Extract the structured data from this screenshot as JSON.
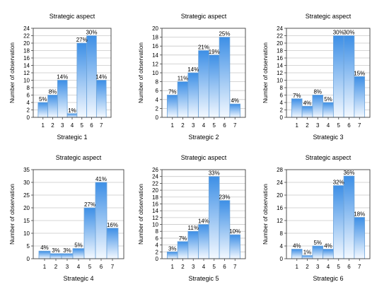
{
  "chart_data": [
    {
      "type": "bar",
      "title": "Strategic aspect",
      "xlabel": "Strategic 1",
      "ylabel": "Number of observation",
      "categories": [
        "1",
        "2",
        "3",
        "4",
        "5",
        "6",
        "7"
      ],
      "values": [
        4,
        6,
        10,
        1,
        20,
        22,
        10
      ],
      "data_labels": [
        "5%",
        "8%",
        "14%",
        "1%",
        "27%",
        "30%",
        "14%"
      ],
      "yticks": [
        "0",
        "2",
        "4",
        "6",
        "8",
        "10",
        "12",
        "14",
        "16",
        "18",
        "20",
        "22",
        "24"
      ],
      "ylim": [
        0,
        24
      ],
      "grid": true
    },
    {
      "type": "bar",
      "title": "Strategic aspect",
      "xlabel": "Strategic 2",
      "ylabel": "Number of observation",
      "categories": [
        "1",
        "2",
        "3",
        "4",
        "5",
        "6",
        "7"
      ],
      "values": [
        5,
        8,
        10,
        15,
        14,
        18,
        3
      ],
      "data_labels": [
        "7%",
        "11%",
        "14%",
        "21%",
        "19%",
        "25%",
        "4%"
      ],
      "yticks": [
        "0",
        "2",
        "4",
        "6",
        "8",
        "10",
        "12",
        "14",
        "16",
        "18",
        "20"
      ],
      "ylim": [
        0,
        20
      ],
      "grid": true
    },
    {
      "type": "bar",
      "title": "Strategic aspect",
      "xlabel": "Strategic 3",
      "ylabel": "Number of observation",
      "categories": [
        "1",
        "2",
        "3",
        "4",
        "5",
        "6",
        "7"
      ],
      "values": [
        5,
        3,
        6,
        4,
        22,
        22,
        11
      ],
      "data_labels": [
        "7%",
        "4%",
        "8%",
        "5%",
        "30%",
        "30%",
        "15%"
      ],
      "yticks": [
        "0",
        "2",
        "4",
        "6",
        "8",
        "10",
        "12",
        "14",
        "16",
        "18",
        "20",
        "22",
        "24"
      ],
      "ylim": [
        0,
        24
      ],
      "grid": true
    },
    {
      "type": "bar",
      "title": "Strategic aspect",
      "xlabel": "Strategic 4",
      "ylabel": "Number of observation",
      "categories": [
        "1",
        "2",
        "3",
        "4",
        "5",
        "6",
        "7"
      ],
      "values": [
        3,
        2,
        2,
        4,
        20,
        30,
        12
      ],
      "data_labels": [
        "4%",
        "3%",
        "3%",
        "5%",
        "27%",
        "41%",
        "16%"
      ],
      "yticks": [
        "0",
        "5",
        "10",
        "15",
        "20",
        "25",
        "30",
        "35"
      ],
      "ylim": [
        0,
        35
      ],
      "grid": true
    },
    {
      "type": "bar",
      "title": "Strategic aspect",
      "xlabel": "Strategic 5",
      "ylabel": "Number of observation",
      "categories": [
        "1",
        "2",
        "3",
        "4",
        "5",
        "6",
        "7"
      ],
      "values": [
        2,
        5,
        8,
        10,
        24,
        17,
        7
      ],
      "data_labels": [
        "3%",
        "7%",
        "11%",
        "14%",
        "33%",
        "23%",
        "10%"
      ],
      "yticks": [
        "0",
        "2",
        "4",
        "6",
        "8",
        "10",
        "12",
        "14",
        "16",
        "18",
        "20",
        "22",
        "24",
        "26"
      ],
      "ylim": [
        0,
        26
      ],
      "grid": true
    },
    {
      "type": "bar",
      "title": "Strategic aspect",
      "xlabel": "Strategic 6",
      "ylabel": "Number of observation",
      "categories": [
        "1",
        "2",
        "3",
        "4",
        "5",
        "6",
        "7"
      ],
      "values": [
        3,
        1,
        4,
        3,
        23,
        26,
        13
      ],
      "data_labels": [
        "4%",
        "1%",
        "5%",
        "4%",
        "32%",
        "36%",
        "18%"
      ],
      "yticks": [
        "0",
        "4",
        "8",
        "12",
        "16",
        "20",
        "24",
        "28"
      ],
      "ylim": [
        0,
        28
      ],
      "grid": true
    }
  ],
  "colors": {
    "bar_top": "#3d8fe6",
    "bar_bottom": "#f4f9ff",
    "bar_edge": "#6ea4d9",
    "grid": "#c8c8c8",
    "axis": "#404040",
    "text": "#000000"
  }
}
